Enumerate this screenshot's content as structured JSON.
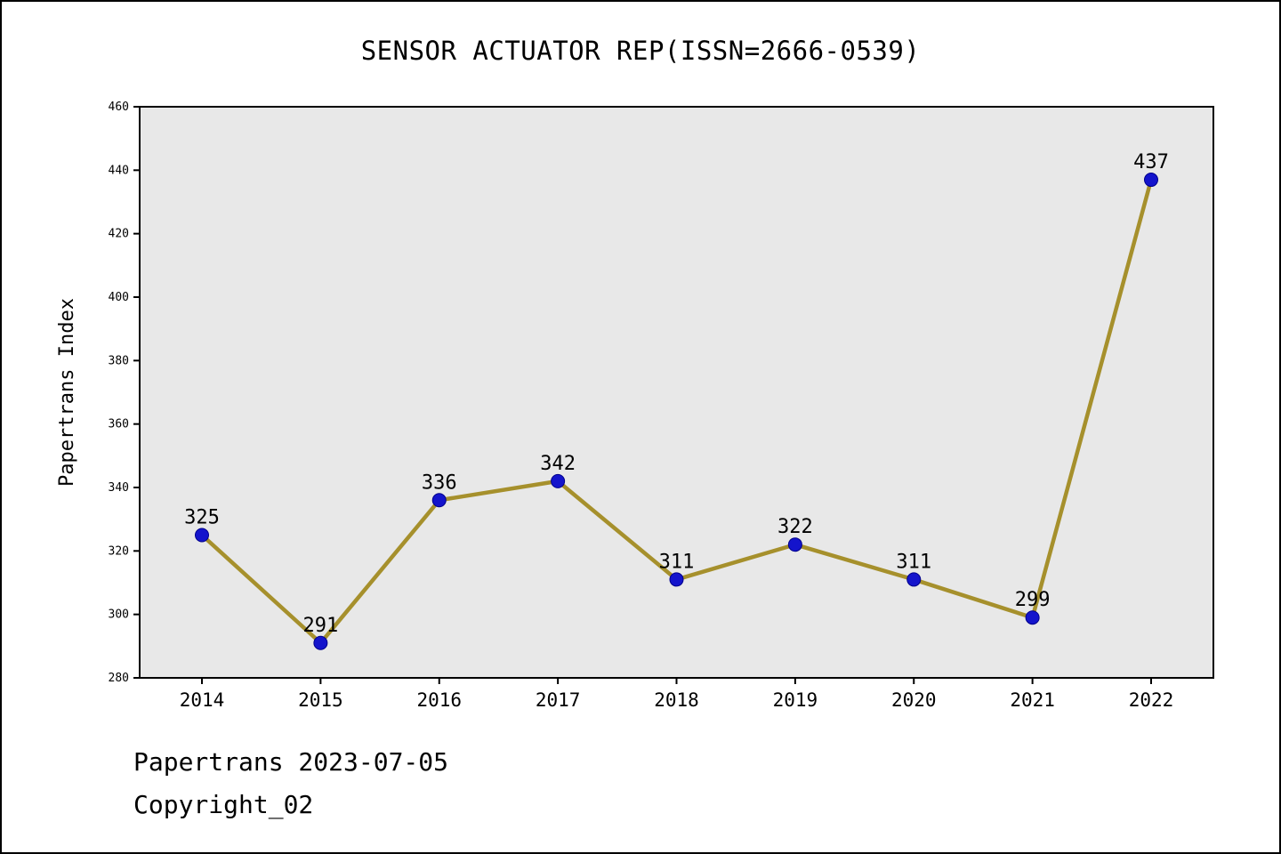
{
  "title": "SENSOR ACTUATOR REP(ISSN=2666-0539)",
  "footer": {
    "line1": "Papertrans 2023-07-05",
    "line2": "Copyright_02"
  },
  "chart_data": {
    "type": "line",
    "categories": [
      "2014",
      "2015",
      "2016",
      "2017",
      "2018",
      "2019",
      "2020",
      "2021",
      "2022"
    ],
    "values": [
      325,
      291,
      336,
      342,
      311,
      322,
      311,
      299,
      437
    ],
    "title": "SENSOR ACTUATOR REP(ISSN=2666-0539)",
    "xlabel": "",
    "ylabel": "Papertrans Index",
    "ylim": [
      280,
      460
    ],
    "ytick_step": 20,
    "grid": false,
    "legend": "none",
    "line_color": "#a6902c",
    "marker_color": "#1414cc",
    "marker_edge_color": "#00008b",
    "plot_bg": "#e8e8e8",
    "axis_color": "#000000",
    "label_color": "#000000"
  }
}
